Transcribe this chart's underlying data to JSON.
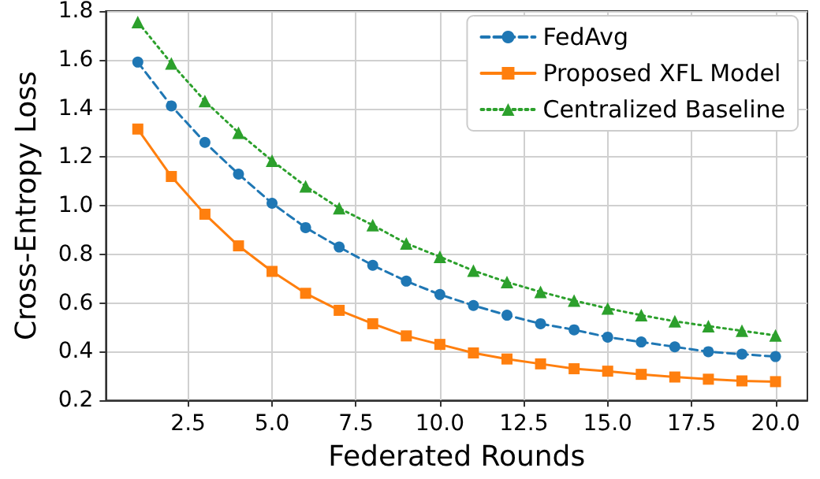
{
  "chart_data": {
    "type": "line",
    "xlabel": "Federated Rounds",
    "ylabel": "Cross-Entropy Loss",
    "x": [
      1,
      2,
      3,
      4,
      5,
      6,
      7,
      8,
      9,
      10,
      11,
      12,
      13,
      14,
      15,
      16,
      17,
      18,
      19,
      20
    ],
    "series": [
      {
        "name": "FedAvg",
        "color": "#1f77b4",
        "marker": "circle",
        "line_style": "dashed",
        "values": [
          1.59,
          1.41,
          1.26,
          1.13,
          1.01,
          0.91,
          0.83,
          0.755,
          0.69,
          0.635,
          0.59,
          0.55,
          0.515,
          0.49,
          0.46,
          0.44,
          0.42,
          0.4,
          0.39,
          0.38
        ]
      },
      {
        "name": "Proposed XFL Model",
        "color": "#ff7f0e",
        "marker": "square",
        "line_style": "solid",
        "values": [
          1.315,
          1.12,
          0.965,
          0.835,
          0.73,
          0.64,
          0.57,
          0.515,
          0.465,
          0.43,
          0.395,
          0.37,
          0.35,
          0.33,
          0.32,
          0.307,
          0.296,
          0.287,
          0.28,
          0.277
        ]
      },
      {
        "name": "Centralized Baseline",
        "color": "#2ca02c",
        "marker": "triangle",
        "line_style": "dotted",
        "values": [
          1.755,
          1.585,
          1.43,
          1.3,
          1.185,
          1.08,
          0.99,
          0.92,
          0.845,
          0.79,
          0.733,
          0.686,
          0.646,
          0.61,
          0.578,
          0.55,
          0.525,
          0.505,
          0.486,
          0.467
        ]
      }
    ],
    "xlim": [
      0.05,
      20.95
    ],
    "xticks": [
      {
        "value": 2.5,
        "label": "2.5"
      },
      {
        "value": 5,
        "label": "5.0"
      },
      {
        "value": 7.5,
        "label": "7.5"
      },
      {
        "value": 10,
        "label": "10.0"
      },
      {
        "value": 12.5,
        "label": "12.5"
      },
      {
        "value": 15,
        "label": "15.0"
      },
      {
        "value": 17.5,
        "label": "17.5"
      },
      {
        "value": 20,
        "label": "20.0"
      }
    ],
    "ylim": [
      0.2,
      1.8
    ],
    "yticks": [
      {
        "value": 0.2,
        "label": "0.2"
      },
      {
        "value": 0.4,
        "label": "0.4"
      },
      {
        "value": 0.6,
        "label": "0.6"
      },
      {
        "value": 0.8,
        "label": "0.8"
      },
      {
        "value": 1.0,
        "label": "1.0"
      },
      {
        "value": 1.2,
        "label": "1.2"
      },
      {
        "value": 1.4,
        "label": "1.4"
      },
      {
        "value": 1.6,
        "label": "1.6"
      },
      {
        "value": 1.8,
        "label": "1.8"
      }
    ],
    "grid": true,
    "legend": "top right"
  }
}
